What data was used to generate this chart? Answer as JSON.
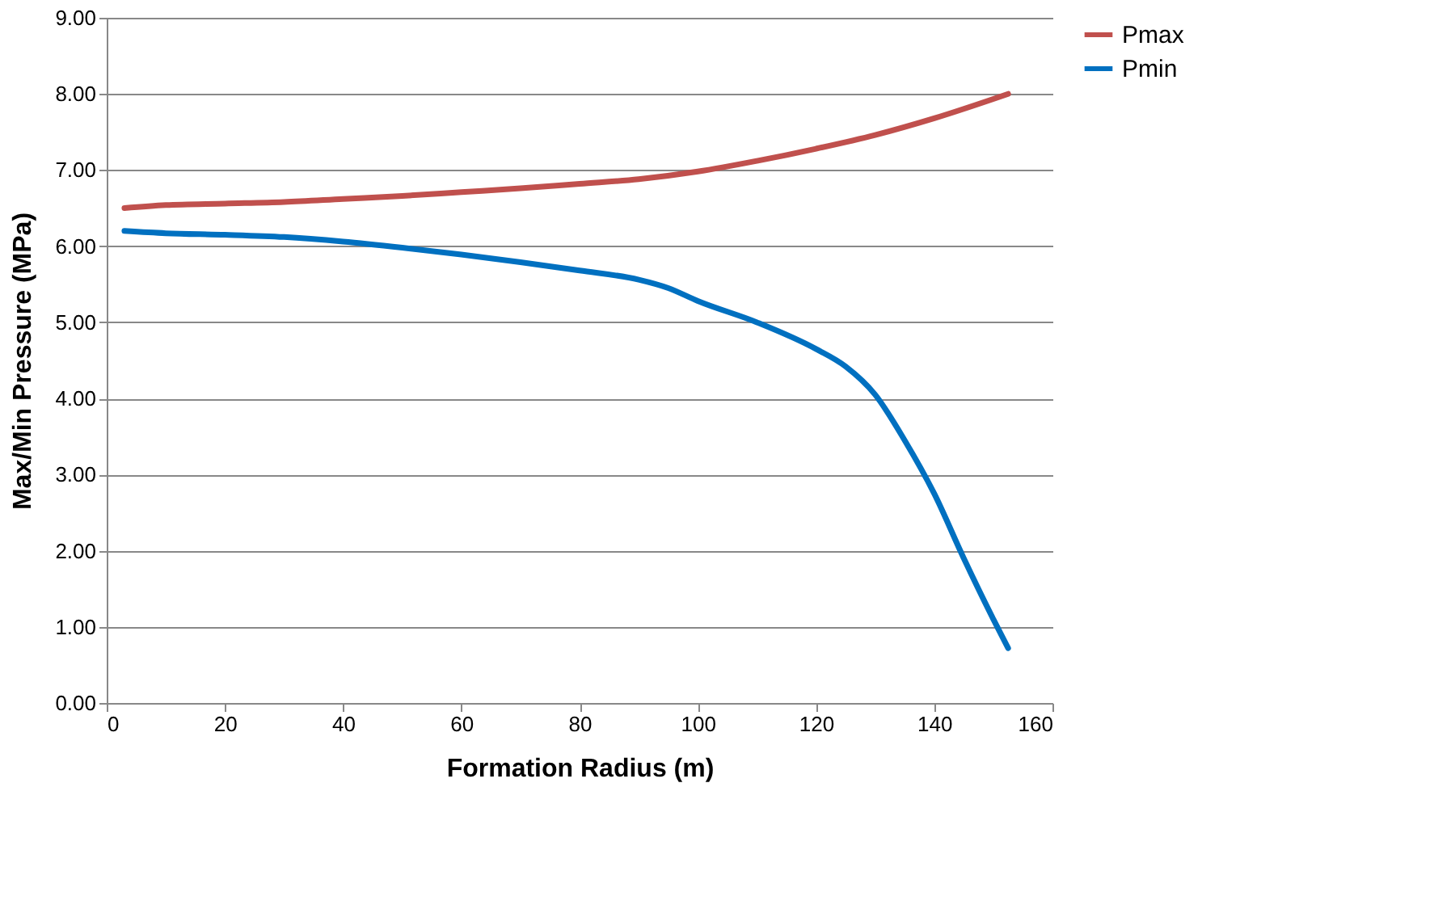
{
  "chart_data": {
    "type": "line",
    "xlabel": "Formation Radius (m)",
    "ylabel": "Max/Min Pressure (MPa)",
    "xlim": [
      0,
      160
    ],
    "xticks": [
      0,
      20,
      40,
      60,
      80,
      100,
      120,
      140,
      160
    ],
    "ylim": [
      0,
      9
    ],
    "yticks": [
      {
        "value": 0,
        "label": "0.00"
      },
      {
        "value": 1,
        "label": "1.00"
      },
      {
        "value": 2,
        "label": "2.00"
      },
      {
        "value": 3,
        "label": "3.00"
      },
      {
        "value": 4,
        "label": "4.00"
      },
      {
        "value": 5,
        "label": "5.00"
      },
      {
        "value": 6,
        "label": "6.00"
      },
      {
        "value": 7,
        "label": "7.00"
      },
      {
        "value": 8,
        "label": "8.00"
      },
      {
        "value": 9,
        "label": "9.00"
      }
    ],
    "grid": "y",
    "legend": "right",
    "marker": "none",
    "line_style": "solid",
    "series": [
      {
        "name": "Pmax",
        "color": "#c0504d",
        "x": [
          3,
          10,
          20,
          30,
          40,
          50,
          60,
          70,
          80,
          90,
          100,
          110,
          120,
          130,
          140,
          152.5
        ],
        "values": [
          6.5,
          6.54,
          6.56,
          6.58,
          6.62,
          6.66,
          6.71,
          6.76,
          6.82,
          6.88,
          6.98,
          7.12,
          7.28,
          7.46,
          7.68,
          8.0
        ]
      },
      {
        "name": "Pmin",
        "color": "#0070c0",
        "x": [
          3,
          10,
          20,
          30,
          40,
          50,
          60,
          70,
          80,
          90,
          95,
          100,
          110,
          120,
          125,
          130,
          135,
          140,
          145,
          150,
          152.5
        ],
        "values": [
          6.2,
          6.17,
          6.15,
          6.12,
          6.06,
          5.98,
          5.89,
          5.79,
          5.68,
          5.56,
          5.45,
          5.28,
          5.0,
          4.65,
          4.42,
          4.05,
          3.45,
          2.75,
          1.9,
          1.1,
          0.72
        ]
      }
    ]
  }
}
